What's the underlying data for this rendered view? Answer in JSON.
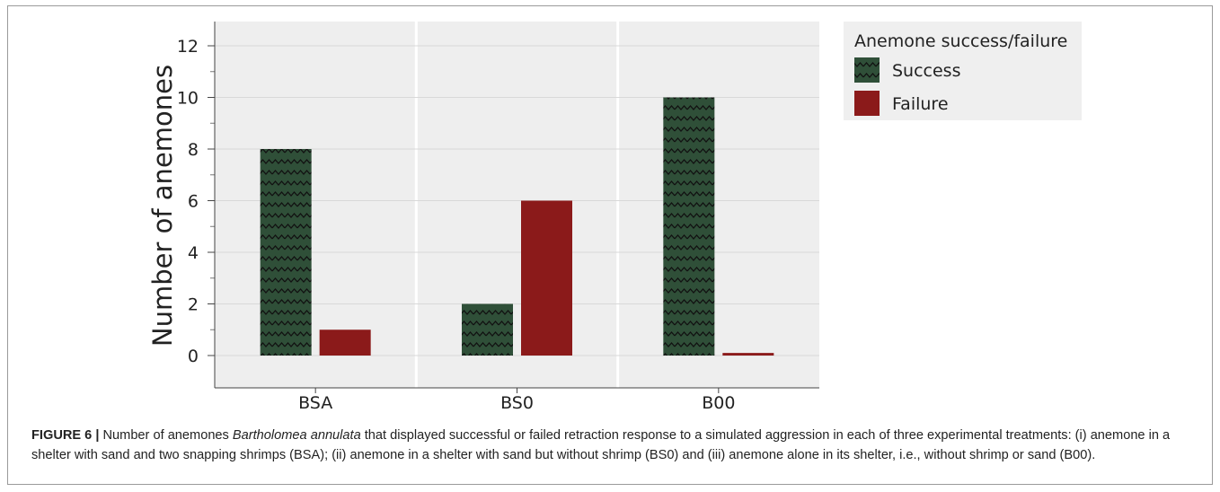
{
  "chart_data": {
    "type": "bar",
    "categories": [
      "BSA",
      "BS0",
      "B00"
    ],
    "series": [
      {
        "name": "Success",
        "values": [
          8,
          2,
          10
        ],
        "color": "#2f4f38",
        "pattern": "zigzag"
      },
      {
        "name": "Failure",
        "values": [
          1,
          6,
          0.1
        ],
        "color": "#8b1a1a"
      }
    ],
    "ylabel": "Number of anemones",
    "xlabel": "",
    "ylim": [
      0,
      12.5
    ],
    "yticks": [
      0,
      2,
      4,
      6,
      8,
      10,
      12
    ],
    "grid": true,
    "legend": {
      "title": "Anemone success/failure",
      "placement": "right"
    }
  },
  "caption": {
    "label": "FIGURE 6 |",
    "text_before": " Number of anemones ",
    "species": "Bartholomea annulata",
    "text_after": " that displayed successful or failed retraction response to a simulated aggression in each of three experimental treatments: (i) anemone in a shelter with sand and two snapping shrimps (BSA); (ii) anemone in a shelter with sand but without shrimp (BS0) and (iii) anemone alone in its shelter, i.e., without shrimp or sand (B00)."
  }
}
